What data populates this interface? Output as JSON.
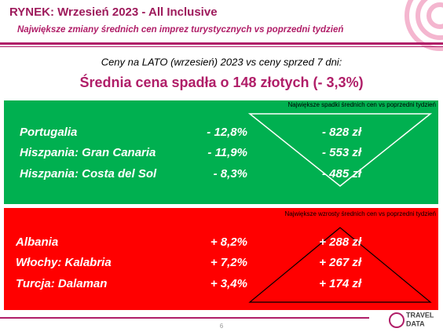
{
  "header": {
    "title": "RYNEK: Wrzesień 2023 - All Inclusive",
    "subtitle": "Największe zmiany średnich cen imprez turystycznych vs poprzedni tydzień"
  },
  "summary": {
    "intro": "Ceny na LATO (wrzesień) 2023 vs ceny sprzed 7 dni:",
    "headline": "Średnia cena spadła o 148 złotych (- 3,3%)"
  },
  "decreases": {
    "label": "Największe spadki średnich cen vs poprzedni tydzień",
    "rows": [
      [
        "Portugalia",
        "- 12,8%",
        "- 828 zł"
      ],
      [
        "Hiszpania: Gran Canaria",
        "- 11,9%",
        "- 553 zł"
      ],
      [
        "Hiszpania: Costa del Sol",
        "- 8,3%",
        "- 485 zł"
      ]
    ]
  },
  "increases": {
    "label": "Największe wzrosty średnich cen vs poprzedni tydzień",
    "rows": [
      [
        "Albania",
        "+ 8,2%",
        "+ 288 zł"
      ],
      [
        "Włochy: Kalabria",
        "+ 7,2%",
        "+ 267 zł"
      ],
      [
        "Turcja: Dalaman",
        "+ 3,4%",
        "+ 174 zł"
      ]
    ]
  },
  "footer": {
    "page": "6",
    "logo": [
      "TRAVEL",
      "DATA"
    ]
  }
}
